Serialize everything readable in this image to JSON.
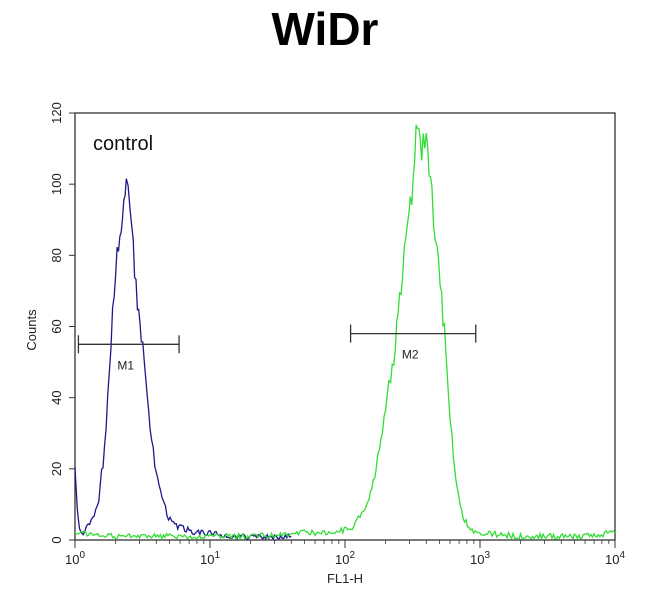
{
  "chart_data": {
    "type": "line",
    "title": "WiDr",
    "xlabel": "FL1-H",
    "ylabel": "Counts",
    "x_scale": "log",
    "xlim": [
      1,
      10000
    ],
    "ylim": [
      0,
      120
    ],
    "y_ticks": [
      0,
      20,
      40,
      60,
      80,
      100,
      120
    ],
    "x_ticks": [
      {
        "value": 1,
        "base": "10",
        "exp": "0"
      },
      {
        "value": 10,
        "base": "10",
        "exp": "1"
      },
      {
        "value": 100,
        "base": "10",
        "exp": "2"
      },
      {
        "value": 1000,
        "base": "10",
        "exp": "3"
      },
      {
        "value": 10000,
        "base": "10",
        "exp": "4"
      }
    ],
    "grid": false,
    "annotation": "control",
    "series": [
      {
        "color": "#1a1a8c",
        "points": [
          [
            1.0,
            22
          ],
          [
            1.04,
            8
          ],
          [
            1.08,
            3
          ],
          [
            1.15,
            2
          ],
          [
            1.25,
            4
          ],
          [
            1.35,
            6
          ],
          [
            1.5,
            12
          ],
          [
            1.65,
            25
          ],
          [
            1.8,
            48
          ],
          [
            1.95,
            70
          ],
          [
            2.1,
            84
          ],
          [
            2.25,
            92
          ],
          [
            2.4,
            104
          ],
          [
            2.55,
            96
          ],
          [
            2.7,
            82
          ],
          [
            2.9,
            67
          ],
          [
            3.1,
            58
          ],
          [
            3.35,
            44
          ],
          [
            3.6,
            32
          ],
          [
            3.9,
            22
          ],
          [
            4.3,
            14
          ],
          [
            4.8,
            7
          ],
          [
            5.5,
            4
          ],
          [
            6.5,
            3
          ],
          [
            8,
            2
          ],
          [
            10,
            2
          ],
          [
            14,
            1
          ],
          [
            20,
            1
          ],
          [
            40,
            1
          ]
        ]
      },
      {
        "color": "#33dd33",
        "points": [
          [
            1.0,
            2
          ],
          [
            2,
            1
          ],
          [
            5,
            1
          ],
          [
            10,
            1
          ],
          [
            20,
            1
          ],
          [
            50,
            2
          ],
          [
            80,
            2
          ],
          [
            110,
            3
          ],
          [
            140,
            8
          ],
          [
            170,
            20
          ],
          [
            200,
            36
          ],
          [
            230,
            52
          ],
          [
            260,
            72
          ],
          [
            290,
            88
          ],
          [
            320,
            102
          ],
          [
            345,
            118
          ],
          [
            370,
            108
          ],
          [
            400,
            112
          ],
          [
            440,
            95
          ],
          [
            480,
            84
          ],
          [
            520,
            68
          ],
          [
            570,
            48
          ],
          [
            620,
            28
          ],
          [
            680,
            14
          ],
          [
            750,
            6
          ],
          [
            850,
            3
          ],
          [
            1000,
            2
          ],
          [
            2000,
            1
          ],
          [
            5000,
            1
          ],
          [
            10000,
            2
          ]
        ]
      }
    ],
    "markers": [
      {
        "label": "M1",
        "x_start": 1.06,
        "x_end": 5.9,
        "y": 55
      },
      {
        "label": "M2",
        "x_start": 110,
        "x_end": 930,
        "y": 58
      }
    ]
  }
}
